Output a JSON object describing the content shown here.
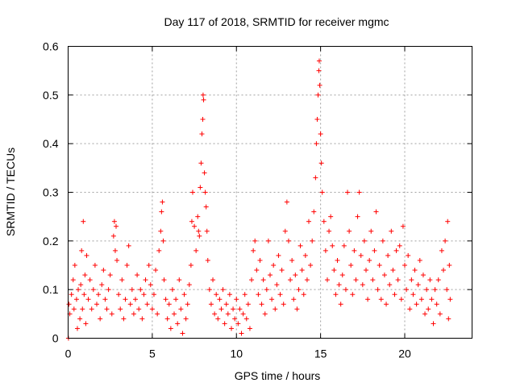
{
  "chart_data": {
    "type": "scatter",
    "title": "Day 117 of 2018, SRMTID for receiver mgmc",
    "xlabel": "GPS time / hours",
    "ylabel": "SRMTID / TECUs",
    "xlim": [
      0,
      24
    ],
    "ylim": [
      0,
      0.6
    ],
    "xticks": [
      0,
      5,
      10,
      15,
      20
    ],
    "xtick_labels": [
      "0",
      "5",
      "10",
      "15",
      "20"
    ],
    "yticks": [
      0,
      0.1,
      0.2,
      0.3,
      0.4,
      0.5,
      0.6
    ],
    "ytick_labels": [
      "0",
      "0.1",
      "0.2",
      "0.3",
      "0.4",
      "0.5",
      "0.6"
    ],
    "grid": true,
    "marker": "+",
    "marker_color": "#ff0000",
    "series": [
      {
        "name": "SRMTID",
        "points": [
          [
            0.02,
            0.0
          ],
          [
            0.05,
            0.07
          ],
          [
            0.1,
            0.05
          ],
          [
            0.2,
            0.09
          ],
          [
            0.3,
            0.12
          ],
          [
            0.35,
            0.06
          ],
          [
            0.4,
            0.15
          ],
          [
            0.5,
            0.08
          ],
          [
            0.55,
            0.02
          ],
          [
            0.6,
            0.1
          ],
          [
            0.7,
            0.04
          ],
          [
            0.75,
            0.11
          ],
          [
            0.8,
            0.18
          ],
          [
            0.85,
            0.06
          ],
          [
            0.9,
            0.24
          ],
          [
            0.95,
            0.09
          ],
          [
            1.0,
            0.13
          ],
          [
            1.05,
            0.03
          ],
          [
            1.1,
            0.17
          ],
          [
            1.2,
            0.08
          ],
          [
            1.3,
            0.12
          ],
          [
            1.4,
            0.06
          ],
          [
            1.5,
            0.1
          ],
          [
            1.6,
            0.15
          ],
          [
            1.7,
            0.07
          ],
          [
            1.8,
            0.09
          ],
          [
            1.9,
            0.04
          ],
          [
            2.0,
            0.11
          ],
          [
            2.1,
            0.14
          ],
          [
            2.2,
            0.08
          ],
          [
            2.3,
            0.06
          ],
          [
            2.4,
            0.1
          ],
          [
            2.5,
            0.13
          ],
          [
            2.6,
            0.05
          ],
          [
            2.7,
            0.21
          ],
          [
            2.75,
            0.24
          ],
          [
            2.8,
            0.18
          ],
          [
            2.85,
            0.23
          ],
          [
            2.9,
            0.16
          ],
          [
            3.0,
            0.09
          ],
          [
            3.1,
            0.06
          ],
          [
            3.2,
            0.12
          ],
          [
            3.3,
            0.04
          ],
          [
            3.4,
            0.08
          ],
          [
            3.5,
            0.15
          ],
          [
            3.6,
            0.19
          ],
          [
            3.7,
            0.07
          ],
          [
            3.8,
            0.1
          ],
          [
            3.9,
            0.05
          ],
          [
            4.0,
            0.08
          ],
          [
            4.1,
            0.13
          ],
          [
            4.2,
            0.06
          ],
          [
            4.3,
            0.1
          ],
          [
            4.4,
            0.04
          ],
          [
            4.5,
            0.09
          ],
          [
            4.6,
            0.12
          ],
          [
            4.7,
            0.07
          ],
          [
            4.8,
            0.15
          ],
          [
            4.9,
            0.11
          ],
          [
            5.0,
            0.06
          ],
          [
            5.1,
            0.09
          ],
          [
            5.2,
            0.14
          ],
          [
            5.3,
            0.05
          ],
          [
            5.4,
            0.18
          ],
          [
            5.5,
            0.22
          ],
          [
            5.55,
            0.26
          ],
          [
            5.6,
            0.28
          ],
          [
            5.65,
            0.2
          ],
          [
            5.7,
            0.12
          ],
          [
            5.8,
            0.08
          ],
          [
            5.9,
            0.04
          ],
          [
            6.0,
            0.07
          ],
          [
            6.1,
            0.02
          ],
          [
            6.2,
            0.1
          ],
          [
            6.3,
            0.05
          ],
          [
            6.4,
            0.08
          ],
          [
            6.5,
            0.03
          ],
          [
            6.6,
            0.12
          ],
          [
            6.7,
            0.06
          ],
          [
            6.8,
            0.01
          ],
          [
            6.9,
            0.09
          ],
          [
            7.0,
            0.04
          ],
          [
            7.1,
            0.07
          ],
          [
            7.2,
            0.11
          ],
          [
            7.3,
            0.15
          ],
          [
            7.35,
            0.24
          ],
          [
            7.4,
            0.3
          ],
          [
            7.5,
            0.23
          ],
          [
            7.6,
            0.18
          ],
          [
            7.7,
            0.25
          ],
          [
            7.75,
            0.22
          ],
          [
            7.8,
            0.21
          ],
          [
            7.85,
            0.31
          ],
          [
            7.9,
            0.36
          ],
          [
            7.95,
            0.42
          ],
          [
            8.0,
            0.45
          ],
          [
            8.02,
            0.5
          ],
          [
            8.05,
            0.49
          ],
          [
            8.1,
            0.34
          ],
          [
            8.15,
            0.3
          ],
          [
            8.2,
            0.27
          ],
          [
            8.25,
            0.22
          ],
          [
            8.3,
            0.16
          ],
          [
            8.4,
            0.1
          ],
          [
            8.5,
            0.07
          ],
          [
            8.6,
            0.12
          ],
          [
            8.7,
            0.05
          ],
          [
            8.8,
            0.09
          ],
          [
            8.9,
            0.04
          ],
          [
            9.0,
            0.08
          ],
          [
            9.1,
            0.06
          ],
          [
            9.2,
            0.1
          ],
          [
            9.3,
            0.03
          ],
          [
            9.4,
            0.07
          ],
          [
            9.5,
            0.05
          ],
          [
            9.6,
            0.09
          ],
          [
            9.7,
            0.02
          ],
          [
            9.8,
            0.06
          ],
          [
            9.9,
            0.04
          ],
          [
            10.0,
            0.08
          ],
          [
            10.1,
            0.03
          ],
          [
            10.2,
            0.06
          ],
          [
            10.3,
            0.01
          ],
          [
            10.4,
            0.05
          ],
          [
            10.5,
            0.09
          ],
          [
            10.6,
            0.04
          ],
          [
            10.7,
            0.07
          ],
          [
            10.8,
            0.02
          ],
          [
            10.9,
            0.12
          ],
          [
            11.0,
            0.18
          ],
          [
            11.1,
            0.2
          ],
          [
            11.2,
            0.14
          ],
          [
            11.3,
            0.09
          ],
          [
            11.4,
            0.16
          ],
          [
            11.5,
            0.07
          ],
          [
            11.6,
            0.12
          ],
          [
            11.7,
            0.05
          ],
          [
            11.8,
            0.1
          ],
          [
            11.9,
            0.2
          ],
          [
            12.0,
            0.13
          ],
          [
            12.1,
            0.08
          ],
          [
            12.2,
            0.15
          ],
          [
            12.3,
            0.06
          ],
          [
            12.4,
            0.11
          ],
          [
            12.5,
            0.17
          ],
          [
            12.6,
            0.09
          ],
          [
            12.7,
            0.14
          ],
          [
            12.8,
            0.07
          ],
          [
            12.9,
            0.22
          ],
          [
            13.0,
            0.28
          ],
          [
            13.1,
            0.2
          ],
          [
            13.2,
            0.12
          ],
          [
            13.3,
            0.16
          ],
          [
            13.4,
            0.08
          ],
          [
            13.5,
            0.13
          ],
          [
            13.6,
            0.06
          ],
          [
            13.7,
            0.1
          ],
          [
            13.8,
            0.19
          ],
          [
            13.9,
            0.14
          ],
          [
            14.0,
            0.09
          ],
          [
            14.1,
            0.17
          ],
          [
            14.2,
            0.12
          ],
          [
            14.3,
            0.24
          ],
          [
            14.4,
            0.15
          ],
          [
            14.5,
            0.2
          ],
          [
            14.6,
            0.26
          ],
          [
            14.7,
            0.33
          ],
          [
            14.75,
            0.4
          ],
          [
            14.8,
            0.45
          ],
          [
            14.85,
            0.5
          ],
          [
            14.9,
            0.55
          ],
          [
            14.92,
            0.57
          ],
          [
            14.95,
            0.52
          ],
          [
            15.0,
            0.42
          ],
          [
            15.05,
            0.36
          ],
          [
            15.1,
            0.3
          ],
          [
            15.2,
            0.24
          ],
          [
            15.3,
            0.18
          ],
          [
            15.4,
            0.12
          ],
          [
            15.5,
            0.22
          ],
          [
            15.6,
            0.25
          ],
          [
            15.7,
            0.19
          ],
          [
            15.8,
            0.14
          ],
          [
            15.9,
            0.09
          ],
          [
            16.0,
            0.16
          ],
          [
            16.1,
            0.11
          ],
          [
            16.2,
            0.07
          ],
          [
            16.3,
            0.13
          ],
          [
            16.4,
            0.19
          ],
          [
            16.5,
            0.1
          ],
          [
            16.6,
            0.3
          ],
          [
            16.7,
            0.22
          ],
          [
            16.8,
            0.15
          ],
          [
            16.9,
            0.09
          ],
          [
            17.0,
            0.18
          ],
          [
            17.1,
            0.12
          ],
          [
            17.2,
            0.25
          ],
          [
            17.3,
            0.3
          ],
          [
            17.4,
            0.17
          ],
          [
            17.5,
            0.11
          ],
          [
            17.6,
            0.2
          ],
          [
            17.7,
            0.14
          ],
          [
            17.8,
            0.08
          ],
          [
            17.9,
            0.16
          ],
          [
            18.0,
            0.22
          ],
          [
            18.1,
            0.12
          ],
          [
            18.2,
            0.18
          ],
          [
            18.3,
            0.26
          ],
          [
            18.4,
            0.1
          ],
          [
            18.5,
            0.15
          ],
          [
            18.6,
            0.08
          ],
          [
            18.7,
            0.2
          ],
          [
            18.8,
            0.13
          ],
          [
            18.9,
            0.07
          ],
          [
            19.0,
            0.17
          ],
          [
            19.1,
            0.11
          ],
          [
            19.2,
            0.22
          ],
          [
            19.3,
            0.14
          ],
          [
            19.4,
            0.09
          ],
          [
            19.5,
            0.18
          ],
          [
            19.6,
            0.12
          ],
          [
            19.7,
            0.19
          ],
          [
            19.8,
            0.08
          ],
          [
            19.9,
            0.23
          ],
          [
            20.0,
            0.15
          ],
          [
            20.1,
            0.1
          ],
          [
            20.2,
            0.17
          ],
          [
            20.3,
            0.06
          ],
          [
            20.4,
            0.12
          ],
          [
            20.5,
            0.09
          ],
          [
            20.6,
            0.14
          ],
          [
            20.7,
            0.07
          ],
          [
            20.8,
            0.11
          ],
          [
            20.9,
            0.16
          ],
          [
            21.0,
            0.08
          ],
          [
            21.1,
            0.13
          ],
          [
            21.2,
            0.05
          ],
          [
            21.3,
            0.1
          ],
          [
            21.4,
            0.06
          ],
          [
            21.5,
            0.12
          ],
          [
            21.6,
            0.08
          ],
          [
            21.7,
            0.03
          ],
          [
            21.8,
            0.1
          ],
          [
            21.9,
            0.07
          ],
          [
            22.0,
            0.12
          ],
          [
            22.1,
            0.05
          ],
          [
            22.2,
            0.18
          ],
          [
            22.3,
            0.14
          ],
          [
            22.4,
            0.2
          ],
          [
            22.5,
            0.1
          ],
          [
            22.55,
            0.24
          ],
          [
            22.6,
            0.04
          ],
          [
            22.65,
            0.15
          ],
          [
            22.7,
            0.08
          ]
        ]
      }
    ]
  }
}
